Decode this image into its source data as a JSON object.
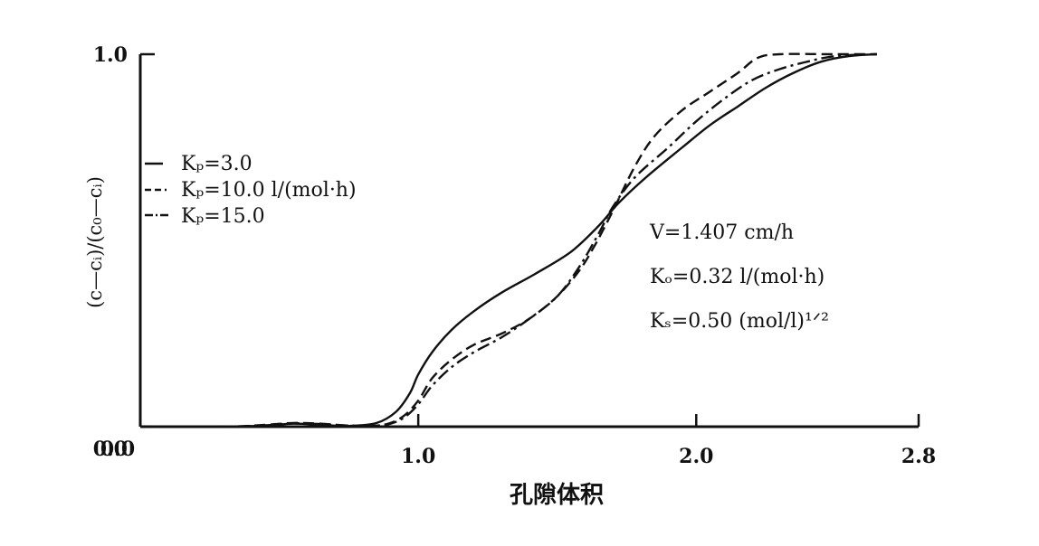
{
  "chart_data": {
    "type": "line",
    "title": "",
    "xlabel": "孔隙体积",
    "ylabel": "(c—cᵢ)/(c₀—cᵢ)",
    "xlim": [
      0.0,
      2.8
    ],
    "ylim": [
      0.0,
      1.0
    ],
    "x_ticks": [
      {
        "value": 1.0,
        "label": "1.0"
      },
      {
        "value": 2.0,
        "label": "2.0"
      },
      {
        "value": 2.8,
        "label": "2.8"
      }
    ],
    "y_ticks": [
      {
        "value": 0.0,
        "label": "0.0"
      },
      {
        "value": 1.0,
        "label": "1.0"
      }
    ],
    "x_origin_label": "0.0",
    "grid": false,
    "legend_position": "top-left",
    "series": [
      {
        "name": "Kₚ=3.0",
        "dash": "solid",
        "points": [
          [
            0,
            0
          ],
          [
            0.3,
            0
          ],
          [
            0.45,
            0.003
          ],
          [
            0.55,
            0.008
          ],
          [
            0.65,
            0.005
          ],
          [
            0.75,
            0.002
          ],
          [
            0.85,
            0.01
          ],
          [
            0.92,
            0.04
          ],
          [
            0.97,
            0.09
          ],
          [
            1.0,
            0.14
          ],
          [
            1.05,
            0.2
          ],
          [
            1.12,
            0.26
          ],
          [
            1.2,
            0.31
          ],
          [
            1.3,
            0.36
          ],
          [
            1.42,
            0.41
          ],
          [
            1.55,
            0.47
          ],
          [
            1.65,
            0.54
          ],
          [
            1.72,
            0.6
          ],
          [
            1.82,
            0.67
          ],
          [
            1.95,
            0.75
          ],
          [
            2.05,
            0.81
          ],
          [
            2.15,
            0.86
          ],
          [
            2.25,
            0.91
          ],
          [
            2.35,
            0.95
          ],
          [
            2.45,
            0.98
          ],
          [
            2.55,
            0.995
          ],
          [
            2.65,
            1.0
          ]
        ]
      },
      {
        "name": "Kₚ=10.0 l/(mol·h)",
        "dash": "dashed",
        "points": [
          [
            0,
            0
          ],
          [
            0.3,
            0
          ],
          [
            0.45,
            0.005
          ],
          [
            0.55,
            0.01
          ],
          [
            0.65,
            0.008
          ],
          [
            0.75,
            0.003
          ],
          [
            0.85,
            0.003
          ],
          [
            0.9,
            0.01
          ],
          [
            0.95,
            0.03
          ],
          [
            1.0,
            0.07
          ],
          [
            1.05,
            0.13
          ],
          [
            1.12,
            0.18
          ],
          [
            1.2,
            0.22
          ],
          [
            1.3,
            0.25
          ],
          [
            1.4,
            0.29
          ],
          [
            1.5,
            0.35
          ],
          [
            1.58,
            0.42
          ],
          [
            1.63,
            0.48
          ],
          [
            1.68,
            0.55
          ],
          [
            1.72,
            0.61
          ],
          [
            1.78,
            0.7
          ],
          [
            1.85,
            0.78
          ],
          [
            1.95,
            0.85
          ],
          [
            2.05,
            0.9
          ],
          [
            2.15,
            0.95
          ],
          [
            2.22,
            0.99
          ],
          [
            2.3,
            1.0
          ],
          [
            2.5,
            1.0
          ],
          [
            2.65,
            1.0
          ]
        ]
      },
      {
        "name": "Kₚ=15.0",
        "dash": "dash-dot",
        "points": [
          [
            0,
            0
          ],
          [
            0.3,
            0
          ],
          [
            0.45,
            0.004
          ],
          [
            0.55,
            0.009
          ],
          [
            0.65,
            0.007
          ],
          [
            0.75,
            0.003
          ],
          [
            0.85,
            0.003
          ],
          [
            0.9,
            0.008
          ],
          [
            0.95,
            0.025
          ],
          [
            1.0,
            0.06
          ],
          [
            1.05,
            0.11
          ],
          [
            1.12,
            0.16
          ],
          [
            1.2,
            0.2
          ],
          [
            1.3,
            0.24
          ],
          [
            1.4,
            0.29
          ],
          [
            1.5,
            0.35
          ],
          [
            1.58,
            0.43
          ],
          [
            1.65,
            0.52
          ],
          [
            1.7,
            0.59
          ],
          [
            1.78,
            0.67
          ],
          [
            1.9,
            0.75
          ],
          [
            2.0,
            0.82
          ],
          [
            2.1,
            0.88
          ],
          [
            2.2,
            0.93
          ],
          [
            2.3,
            0.96
          ],
          [
            2.4,
            0.98
          ],
          [
            2.5,
            0.995
          ],
          [
            2.65,
            1.0
          ]
        ]
      }
    ],
    "legend": [
      {
        "label": "Kₚ=3.0",
        "dash": "solid"
      },
      {
        "label": "Kₚ=10.0 l/(mol·h)",
        "dash": "dashed"
      },
      {
        "label": "Kₚ=15.0",
        "dash": "dash-dot"
      }
    ],
    "annotations": [
      "V=1.407 cm/h",
      "Kₒ=0.32 l/(mol·h)",
      "Kₛ=0.50 (mol/l)¹ᐟ²"
    ]
  }
}
